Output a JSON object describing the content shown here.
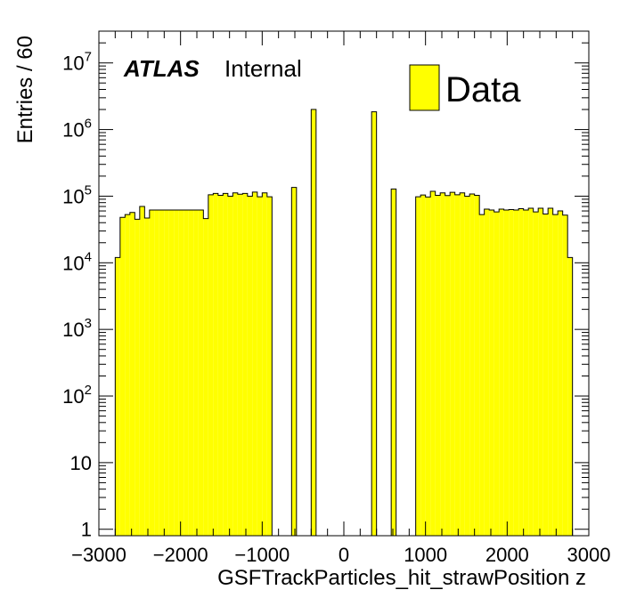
{
  "chart_data": {
    "type": "bar",
    "histogram": true,
    "xlabel": "GSFTrackParticles_hit_strawPosition z",
    "ylabel": "Entries / 60",
    "bin_width": 60,
    "xlim": [
      -3000,
      3000
    ],
    "ylim": [
      0.8,
      30000000
    ],
    "y_scale": "log",
    "x_ticks": [
      "−3000",
      "−2000",
      "−1000",
      "0",
      "1000",
      "2000",
      "3000"
    ],
    "x_tick_values": [
      -3000,
      -2000,
      -1000,
      0,
      1000,
      2000,
      3000
    ],
    "y_ticks": [
      {
        "value": 1,
        "base": "1",
        "exp": ""
      },
      {
        "value": 10,
        "base": "10",
        "exp": ""
      },
      {
        "value": 100,
        "base": "10",
        "exp": "2"
      },
      {
        "value": 1000,
        "base": "10",
        "exp": "3"
      },
      {
        "value": 10000,
        "base": "10",
        "exp": "4"
      },
      {
        "value": 100000,
        "base": "10",
        "exp": "5"
      },
      {
        "value": 1000000,
        "base": "10",
        "exp": "6"
      },
      {
        "value": 10000000,
        "base": "10",
        "exp": "7"
      }
    ],
    "fill_color": "#ffff00",
    "edge_color": "#000000",
    "bins": [
      {
        "x": -2800,
        "y": 12000
      },
      {
        "x": -2740,
        "y": 48000
      },
      {
        "x": -2680,
        "y": 53000
      },
      {
        "x": -2620,
        "y": 57000
      },
      {
        "x": -2560,
        "y": 45000
      },
      {
        "x": -2500,
        "y": 70000
      },
      {
        "x": -2440,
        "y": 47000
      },
      {
        "x": -2380,
        "y": 62000
      },
      {
        "x": -2320,
        "y": 62000
      },
      {
        "x": -2260,
        "y": 62000
      },
      {
        "x": -2200,
        "y": 62000
      },
      {
        "x": -2140,
        "y": 62000
      },
      {
        "x": -2080,
        "y": 62000
      },
      {
        "x": -2020,
        "y": 62000
      },
      {
        "x": -1960,
        "y": 62000
      },
      {
        "x": -1900,
        "y": 62000
      },
      {
        "x": -1840,
        "y": 62000
      },
      {
        "x": -1780,
        "y": 62000
      },
      {
        "x": -1720,
        "y": 46000
      },
      {
        "x": -1660,
        "y": 105000
      },
      {
        "x": -1600,
        "y": 110000
      },
      {
        "x": -1540,
        "y": 103000
      },
      {
        "x": -1480,
        "y": 110000
      },
      {
        "x": -1420,
        "y": 100000
      },
      {
        "x": -1360,
        "y": 112000
      },
      {
        "x": -1300,
        "y": 107000
      },
      {
        "x": -1240,
        "y": 110000
      },
      {
        "x": -1180,
        "y": 100000
      },
      {
        "x": -1120,
        "y": 115000
      },
      {
        "x": -1060,
        "y": 98000
      },
      {
        "x": -1000,
        "y": 112000
      },
      {
        "x": -940,
        "y": 98000
      },
      {
        "x": -640,
        "y": 135000
      },
      {
        "x": -400,
        "y": 2000000
      },
      {
        "x": 340,
        "y": 1850000
      },
      {
        "x": 580,
        "y": 128000
      },
      {
        "x": 880,
        "y": 98000
      },
      {
        "x": 940,
        "y": 104000
      },
      {
        "x": 1000,
        "y": 97000
      },
      {
        "x": 1060,
        "y": 118000
      },
      {
        "x": 1120,
        "y": 103000
      },
      {
        "x": 1180,
        "y": 112000
      },
      {
        "x": 1240,
        "y": 102000
      },
      {
        "x": 1300,
        "y": 114000
      },
      {
        "x": 1360,
        "y": 105000
      },
      {
        "x": 1420,
        "y": 112000
      },
      {
        "x": 1480,
        "y": 100000
      },
      {
        "x": 1540,
        "y": 108000
      },
      {
        "x": 1600,
        "y": 103000
      },
      {
        "x": 1660,
        "y": 53000
      },
      {
        "x": 1720,
        "y": 64000
      },
      {
        "x": 1780,
        "y": 62000
      },
      {
        "x": 1840,
        "y": 58000
      },
      {
        "x": 1900,
        "y": 64000
      },
      {
        "x": 1960,
        "y": 62000
      },
      {
        "x": 2020,
        "y": 63000
      },
      {
        "x": 2080,
        "y": 62000
      },
      {
        "x": 2140,
        "y": 65000
      },
      {
        "x": 2200,
        "y": 62000
      },
      {
        "x": 2260,
        "y": 66000
      },
      {
        "x": 2320,
        "y": 58000
      },
      {
        "x": 2380,
        "y": 66000
      },
      {
        "x": 2440,
        "y": 54000
      },
      {
        "x": 2500,
        "y": 66000
      },
      {
        "x": 2560,
        "y": 53000
      },
      {
        "x": 2620,
        "y": 60000
      },
      {
        "x": 2680,
        "y": 52000
      },
      {
        "x": 2740,
        "y": 12000
      }
    ]
  },
  "annotation": {
    "atlas": "ATLAS",
    "internal": "Internal"
  },
  "legend": {
    "label": "Data",
    "placement": "top-right"
  }
}
